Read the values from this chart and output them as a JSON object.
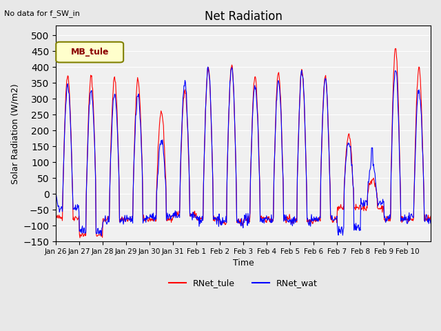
{
  "title": "Net Radiation",
  "ylabel": "Solar Radiation (W/m2)",
  "xlabel": "Time",
  "note": "No data for f_SW_in",
  "legend_label": "MB_tule",
  "series_labels": [
    "RNet_tule",
    "RNet_wat"
  ],
  "series_colors": [
    "red",
    "blue"
  ],
  "ylim": [
    -150,
    530
  ],
  "yticks": [
    -150,
    -100,
    -50,
    0,
    50,
    100,
    150,
    200,
    250,
    300,
    350,
    400,
    450,
    500
  ],
  "xtick_labels": [
    "Jan 26",
    "Jan 27",
    "Jan 28",
    "Jan 29",
    "Jan 30",
    "Jan 31",
    "Feb 1",
    "Feb 2",
    "Feb 3",
    "Feb 4",
    "Feb 5",
    "Feb 6",
    "Feb 7",
    "Feb 8",
    "Feb 9",
    "Feb 10"
  ],
  "bgcolor": "#e8e8e8",
  "plot_bgcolor": "#f0f0f0"
}
